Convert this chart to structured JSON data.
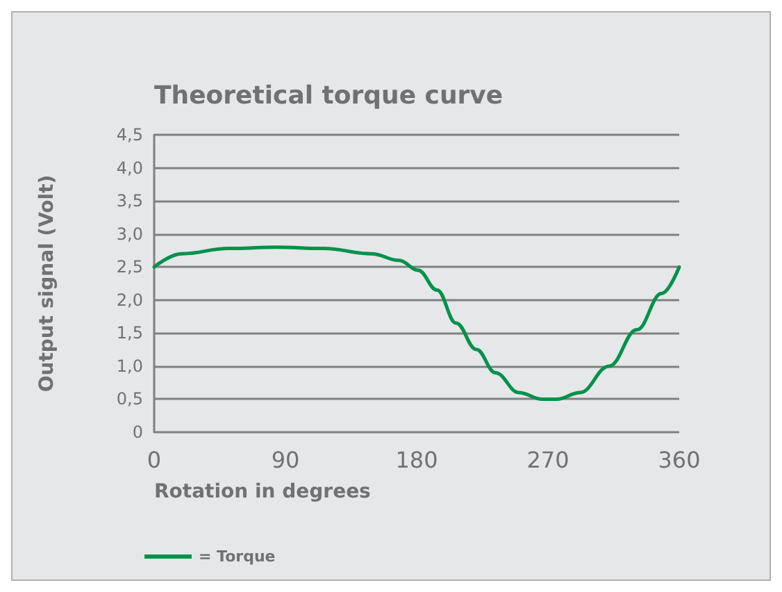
{
  "chart_data": {
    "type": "line",
    "title": "Theoretical torque curve",
    "xlabel": "Rotation in degrees",
    "ylabel": "Output signal (Volt)",
    "xlim": [
      0,
      360
    ],
    "xticks": [
      0,
      90,
      180,
      270,
      360
    ],
    "ylim": [
      0,
      4.5
    ],
    "yticks": [
      0,
      {
        "value": 0.5,
        "label": "0,5"
      },
      {
        "value": 1,
        "label": "1,0"
      },
      {
        "value": 1.5,
        "label": "1,5"
      },
      {
        "value": 2,
        "label": "2,0"
      },
      {
        "value": 2.5,
        "label": "2,5"
      },
      {
        "value": 3,
        "label": "3,0"
      },
      {
        "value": 3.5,
        "label": "3,5"
      },
      {
        "value": 4,
        "label": "4,0"
      },
      {
        "value": 4.5,
        "label": "4,5"
      }
    ],
    "x": [
      0,
      19,
      51,
      84,
      116,
      149,
      168,
      181,
      194,
      207,
      221,
      234,
      250,
      266,
      276,
      292,
      312,
      331,
      348,
      360
    ],
    "series": [
      {
        "name": "= Torque",
        "color": "#00924a",
        "values": [
          2.5,
          2.7,
          2.78,
          2.8,
          2.78,
          2.7,
          2.6,
          2.45,
          2.15,
          1.65,
          1.25,
          0.9,
          0.6,
          0.5,
          0.5,
          0.6,
          1.0,
          1.55,
          2.1,
          2.5
        ]
      }
    ],
    "grid": "y",
    "legend": "bottom left",
    "marker": "none",
    "line_style": "solid"
  }
}
